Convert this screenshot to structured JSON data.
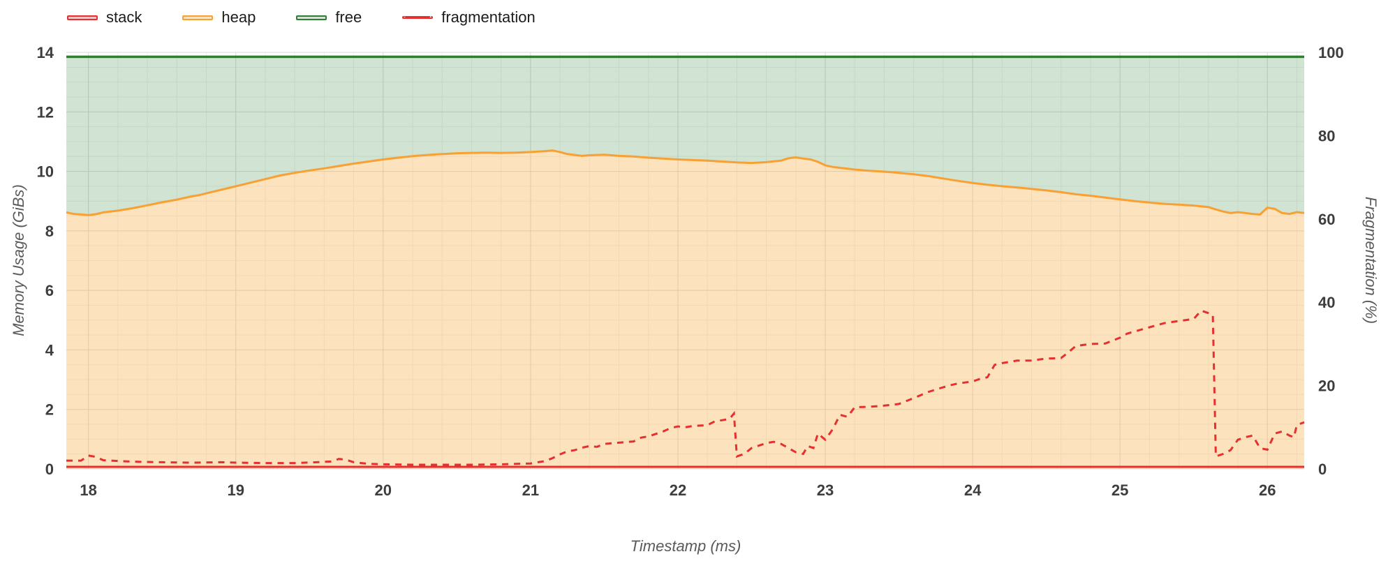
{
  "legend": {
    "items": [
      {
        "label": "stack",
        "color": "#e53030",
        "fill": "rgba(229,48,48,0.30)",
        "type": "area"
      },
      {
        "label": "heap",
        "color": "#f9a032",
        "fill": "rgba(250,166,54,0.32)",
        "type": "area"
      },
      {
        "label": "free",
        "color": "#2f7e32",
        "fill": "rgba(47,126,50,0.22)",
        "type": "area"
      },
      {
        "label": "fragmentation",
        "color": "#e53030",
        "type": "dashed-line"
      }
    ]
  },
  "chart_data": {
    "type": "area",
    "title": "",
    "xlabel": "Timestamp (ms)",
    "ylabel_left": "Memory Usage (GiBs)",
    "ylabel_right": "Fragmentation (%)",
    "x_range": [
      17.85,
      26.25
    ],
    "y_left_range": [
      0,
      14
    ],
    "y_right_range": [
      0,
      100
    ],
    "x_ticks": [
      18,
      19,
      20,
      21,
      22,
      23,
      24,
      25,
      26
    ],
    "y_left_ticks": [
      0,
      2,
      4,
      6,
      8,
      10,
      12,
      14
    ],
    "y_right_ticks": [
      0,
      20,
      40,
      60,
      80,
      100
    ],
    "grid": {
      "minor_x_step": 0.2,
      "minor_y_step": 0.5,
      "on": true
    },
    "legend_position": "top-left",
    "total_memory_gib": 13.85,
    "series": [
      {
        "name": "stack",
        "axis": "left",
        "style": "line",
        "points": [
          [
            17.85,
            0.07
          ],
          [
            26.25,
            0.07
          ]
        ]
      },
      {
        "name": "heap",
        "axis": "left",
        "style": "area",
        "points": [
          [
            17.85,
            8.62
          ],
          [
            17.9,
            8.57
          ],
          [
            17.95,
            8.55
          ],
          [
            18.0,
            8.53
          ],
          [
            18.05,
            8.56
          ],
          [
            18.1,
            8.62
          ],
          [
            18.2,
            8.68
          ],
          [
            18.3,
            8.76
          ],
          [
            18.4,
            8.86
          ],
          [
            18.5,
            8.96
          ],
          [
            18.6,
            9.05
          ],
          [
            18.7,
            9.16
          ],
          [
            18.75,
            9.2
          ],
          [
            18.8,
            9.26
          ],
          [
            18.9,
            9.38
          ],
          [
            19.0,
            9.5
          ],
          [
            19.1,
            9.62
          ],
          [
            19.2,
            9.74
          ],
          [
            19.3,
            9.86
          ],
          [
            19.4,
            9.95
          ],
          [
            19.5,
            10.03
          ],
          [
            19.6,
            10.1
          ],
          [
            19.7,
            10.18
          ],
          [
            19.8,
            10.26
          ],
          [
            19.9,
            10.33
          ],
          [
            20.0,
            10.4
          ],
          [
            20.1,
            10.46
          ],
          [
            20.2,
            10.51
          ],
          [
            20.3,
            10.55
          ],
          [
            20.4,
            10.58
          ],
          [
            20.5,
            10.61
          ],
          [
            20.6,
            10.62
          ],
          [
            20.7,
            10.63
          ],
          [
            20.8,
            10.62
          ],
          [
            20.9,
            10.63
          ],
          [
            21.0,
            10.65
          ],
          [
            21.1,
            10.68
          ],
          [
            21.15,
            10.7
          ],
          [
            21.2,
            10.65
          ],
          [
            21.25,
            10.58
          ],
          [
            21.3,
            10.55
          ],
          [
            21.35,
            10.52
          ],
          [
            21.4,
            10.54
          ],
          [
            21.5,
            10.56
          ],
          [
            21.6,
            10.52
          ],
          [
            21.7,
            10.5
          ],
          [
            21.8,
            10.46
          ],
          [
            21.9,
            10.43
          ],
          [
            22.0,
            10.4
          ],
          [
            22.1,
            10.38
          ],
          [
            22.2,
            10.36
          ],
          [
            22.3,
            10.33
          ],
          [
            22.4,
            10.3
          ],
          [
            22.5,
            10.28
          ],
          [
            22.6,
            10.31
          ],
          [
            22.7,
            10.36
          ],
          [
            22.75,
            10.44
          ],
          [
            22.8,
            10.47
          ],
          [
            22.85,
            10.43
          ],
          [
            22.9,
            10.4
          ],
          [
            22.95,
            10.32
          ],
          [
            23.0,
            10.2
          ],
          [
            23.05,
            10.15
          ],
          [
            23.1,
            10.12
          ],
          [
            23.2,
            10.06
          ],
          [
            23.3,
            10.02
          ],
          [
            23.4,
            9.99
          ],
          [
            23.5,
            9.95
          ],
          [
            23.6,
            9.9
          ],
          [
            23.7,
            9.84
          ],
          [
            23.8,
            9.76
          ],
          [
            23.9,
            9.68
          ],
          [
            24.0,
            9.61
          ],
          [
            24.1,
            9.55
          ],
          [
            24.2,
            9.5
          ],
          [
            24.3,
            9.46
          ],
          [
            24.4,
            9.41
          ],
          [
            24.5,
            9.36
          ],
          [
            24.6,
            9.3
          ],
          [
            24.7,
            9.23
          ],
          [
            24.8,
            9.18
          ],
          [
            24.9,
            9.12
          ],
          [
            25.0,
            9.06
          ],
          [
            25.1,
            9.0
          ],
          [
            25.2,
            8.95
          ],
          [
            25.3,
            8.91
          ],
          [
            25.4,
            8.88
          ],
          [
            25.5,
            8.85
          ],
          [
            25.6,
            8.8
          ],
          [
            25.65,
            8.72
          ],
          [
            25.7,
            8.65
          ],
          [
            25.75,
            8.6
          ],
          [
            25.8,
            8.63
          ],
          [
            25.85,
            8.6
          ],
          [
            25.9,
            8.57
          ],
          [
            25.95,
            8.55
          ],
          [
            26.0,
            8.78
          ],
          [
            26.05,
            8.74
          ],
          [
            26.1,
            8.6
          ],
          [
            26.15,
            8.57
          ],
          [
            26.2,
            8.63
          ],
          [
            26.25,
            8.6
          ]
        ]
      },
      {
        "name": "free",
        "axis": "left",
        "style": "area-to-total",
        "points": [
          [
            17.85,
            13.85
          ],
          [
            26.25,
            13.85
          ]
        ]
      },
      {
        "name": "fragmentation",
        "axis": "right",
        "style": "dashed-line",
        "points": [
          [
            17.85,
            2.0
          ],
          [
            17.95,
            2.0
          ],
          [
            18.0,
            3.2
          ],
          [
            18.05,
            2.9
          ],
          [
            18.1,
            2.1
          ],
          [
            18.2,
            1.9
          ],
          [
            18.35,
            1.7
          ],
          [
            18.5,
            1.6
          ],
          [
            18.7,
            1.5
          ],
          [
            18.9,
            1.6
          ],
          [
            19.0,
            1.5
          ],
          [
            19.2,
            1.4
          ],
          [
            19.4,
            1.4
          ],
          [
            19.55,
            1.6
          ],
          [
            19.65,
            1.8
          ],
          [
            19.7,
            2.4
          ],
          [
            19.75,
            2.2
          ],
          [
            19.8,
            1.6
          ],
          [
            19.9,
            1.2
          ],
          [
            20.0,
            1.1
          ],
          [
            20.2,
            1.0
          ],
          [
            20.4,
            1.0
          ],
          [
            20.6,
            1.0
          ],
          [
            20.8,
            1.1
          ],
          [
            21.0,
            1.3
          ],
          [
            21.1,
            1.9
          ],
          [
            21.15,
            2.6
          ],
          [
            21.2,
            3.5
          ],
          [
            21.25,
            4.2
          ],
          [
            21.3,
            4.5
          ],
          [
            21.35,
            5.1
          ],
          [
            21.4,
            5.5
          ],
          [
            21.45,
            5.3
          ],
          [
            21.5,
            6.0
          ],
          [
            21.6,
            6.3
          ],
          [
            21.7,
            6.6
          ],
          [
            21.75,
            7.5
          ],
          [
            21.8,
            7.8
          ],
          [
            21.9,
            9.0
          ],
          [
            21.95,
            9.8
          ],
          [
            22.0,
            10.2
          ],
          [
            22.05,
            10.0
          ],
          [
            22.1,
            10.3
          ],
          [
            22.2,
            10.5
          ],
          [
            22.25,
            11.4
          ],
          [
            22.3,
            11.7
          ],
          [
            22.35,
            12.0
          ],
          [
            22.38,
            13.3
          ],
          [
            22.4,
            3.0
          ],
          [
            22.45,
            3.6
          ],
          [
            22.5,
            5.0
          ],
          [
            22.55,
            5.6
          ],
          [
            22.6,
            6.2
          ],
          [
            22.65,
            6.5
          ],
          [
            22.7,
            6.0
          ],
          [
            22.75,
            5.0
          ],
          [
            22.8,
            4.0
          ],
          [
            22.85,
            3.6
          ],
          [
            22.88,
            5.5
          ],
          [
            22.92,
            5.0
          ],
          [
            22.95,
            8.5
          ],
          [
            23.0,
            7.0
          ],
          [
            23.05,
            9.5
          ],
          [
            23.1,
            13.0
          ],
          [
            23.15,
            12.5
          ],
          [
            23.2,
            14.8
          ],
          [
            23.3,
            14.9
          ],
          [
            23.4,
            15.2
          ],
          [
            23.5,
            15.6
          ],
          [
            23.6,
            17.0
          ],
          [
            23.7,
            18.5
          ],
          [
            23.8,
            19.6
          ],
          [
            23.85,
            20.1
          ],
          [
            23.9,
            20.5
          ],
          [
            24.0,
            21.0
          ],
          [
            24.05,
            21.6
          ],
          [
            24.1,
            22.0
          ],
          [
            24.15,
            25.0
          ],
          [
            24.2,
            25.4
          ],
          [
            24.3,
            26.0
          ],
          [
            24.4,
            26.0
          ],
          [
            24.5,
            26.5
          ],
          [
            24.6,
            26.6
          ],
          [
            24.65,
            28.0
          ],
          [
            24.7,
            29.5
          ],
          [
            24.8,
            30.0
          ],
          [
            24.9,
            30.1
          ],
          [
            25.0,
            31.5
          ],
          [
            25.05,
            32.5
          ],
          [
            25.1,
            33.0
          ],
          [
            25.2,
            34.0
          ],
          [
            25.3,
            35.0
          ],
          [
            25.4,
            35.5
          ],
          [
            25.5,
            36.0
          ],
          [
            25.55,
            38.0
          ],
          [
            25.6,
            37.4
          ],
          [
            25.63,
            37.0
          ],
          [
            25.65,
            3.0
          ],
          [
            25.7,
            3.6
          ],
          [
            25.75,
            4.5
          ],
          [
            25.8,
            7.0
          ],
          [
            25.85,
            7.6
          ],
          [
            25.9,
            8.0
          ],
          [
            25.95,
            5.0
          ],
          [
            26.0,
            4.6
          ],
          [
            26.05,
            8.5
          ],
          [
            26.1,
            9.0
          ],
          [
            26.15,
            8.0
          ],
          [
            26.18,
            7.6
          ],
          [
            26.2,
            10.5
          ],
          [
            26.25,
            11.2
          ]
        ]
      }
    ]
  }
}
